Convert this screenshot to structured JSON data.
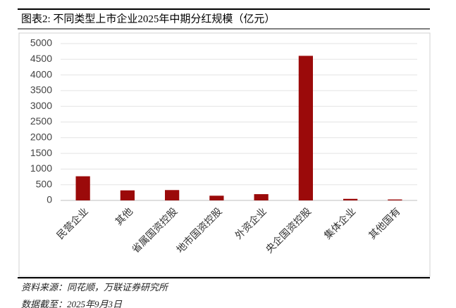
{
  "chart_data": {
    "type": "bar",
    "title": "图表2:  不同类型上市企业2025年中期分红规模（亿元）",
    "categories": [
      "民营企业",
      "其他",
      "省属国资控股",
      "地市国资控股",
      "外资企业",
      "央企国资控股",
      "集体企业",
      "其他国有"
    ],
    "values": [
      770,
      320,
      330,
      150,
      200,
      4610,
      50,
      30
    ],
    "color": "#9b0a0a",
    "ylim": [
      0,
      5000
    ],
    "yticks": [
      0,
      500,
      1000,
      1500,
      2000,
      2500,
      3000,
      3500,
      4000,
      4500,
      5000
    ],
    "grid": true
  },
  "notes": [
    "资料来源：同花顺，万联证券研究所",
    "数据截至：2025年9月3日"
  ]
}
